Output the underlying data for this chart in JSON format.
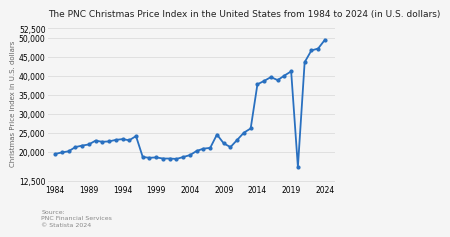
{
  "title": "The PNC Christmas Price Index in the United States from 1984 to 2024 (in U.S. dollars)",
  "ylabel": "Christmas Price Index in U.S. dollars",
  "source_label": "Source:\nPNC Financial Services\n© Statista 2024",
  "years": [
    1984,
    1985,
    1986,
    1987,
    1988,
    1989,
    1990,
    1991,
    1992,
    1993,
    1994,
    1995,
    1996,
    1997,
    1998,
    1999,
    2000,
    2001,
    2002,
    2003,
    2004,
    2005,
    2006,
    2007,
    2008,
    2009,
    2010,
    2011,
    2012,
    2013,
    2014,
    2015,
    2016,
    2017,
    2018,
    2019,
    2020,
    2021,
    2022,
    2023,
    2024
  ],
  "values": [
    19500,
    19900,
    20200,
    21300,
    21700,
    22000,
    23000,
    22700,
    22800,
    23200,
    23400,
    23100,
    24200,
    18700,
    18500,
    18600,
    18300,
    18300,
    18200,
    18700,
    19200,
    20300,
    20900,
    21100,
    24600,
    22300,
    21300,
    23200,
    25100,
    26200,
    37800,
    38700,
    39700,
    38900,
    40100,
    41200,
    16100,
    43600,
    46700,
    47200,
    49500
  ],
  "line_color": "#2970c0",
  "line_width": 1.3,
  "marker": "o",
  "marker_size": 2.0,
  "ylim": [
    12000,
    53500
  ],
  "ytick_vals": [
    12500,
    20000,
    25000,
    30000,
    35000,
    40000,
    45000,
    50000,
    52500
  ],
  "xtick_years": [
    1984,
    1989,
    1994,
    1999,
    2004,
    2009,
    2014,
    2019,
    2024
  ],
  "background_color": "#f5f5f5",
  "plot_bg_color": "#f5f5f5",
  "grid_color": "#e0e0e0",
  "title_fontsize": 6.5,
  "axis_fontsize": 5.5,
  "ylabel_fontsize": 5.0,
  "source_fontsize": 4.5
}
